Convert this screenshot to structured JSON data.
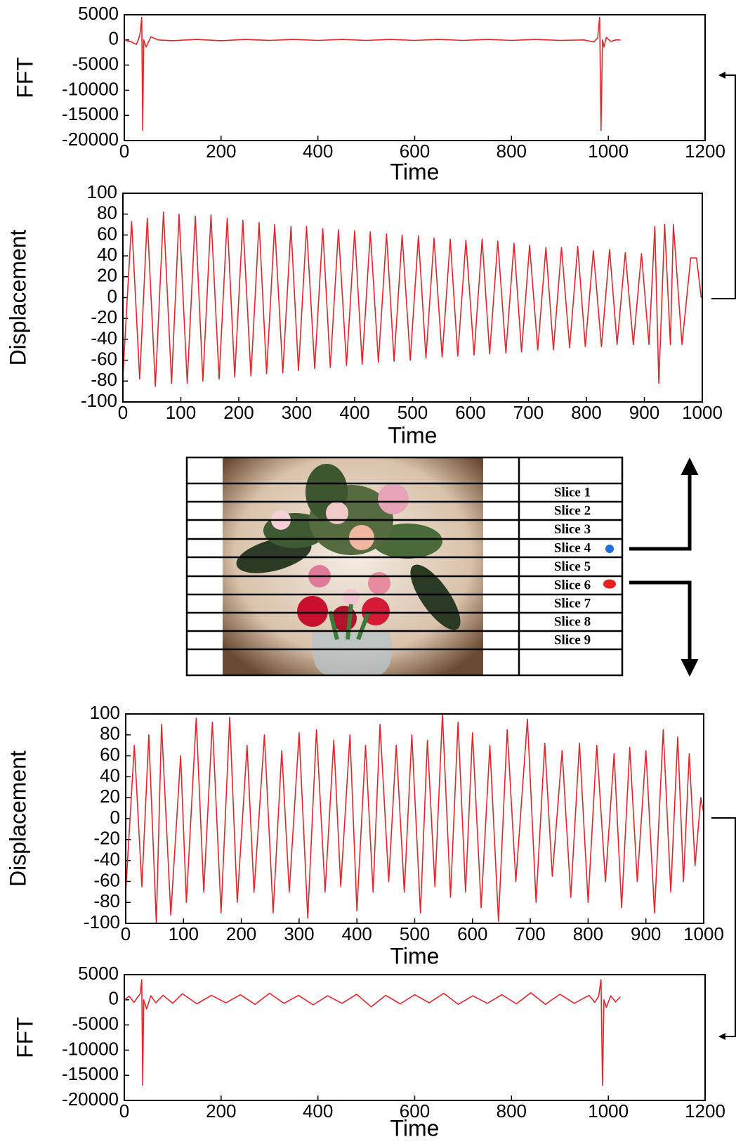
{
  "chart_data": [
    {
      "type": "line",
      "xlabel": "Time",
      "ylabel": "FFT",
      "color": "#e8232a",
      "x": [
        0,
        15,
        25,
        30,
        33,
        36,
        38,
        40,
        45,
        55,
        70,
        100,
        150,
        200,
        250,
        300,
        350,
        400,
        450,
        500,
        550,
        600,
        650,
        700,
        750,
        800,
        850,
        900,
        950,
        970,
        978,
        982,
        985,
        988,
        991,
        996,
        1005,
        1015,
        1025
      ],
      "values": [
        0,
        -400,
        -900,
        300,
        1500,
        4500,
        -18000,
        0,
        -1400,
        600,
        0,
        -150,
        100,
        -150,
        100,
        -100,
        100,
        -100,
        100,
        -100,
        100,
        -100,
        100,
        -100,
        100,
        -100,
        100,
        -100,
        0,
        -400,
        400,
        4500,
        -18000,
        0,
        -1400,
        500,
        -300,
        0,
        0
      ],
      "xlim": [
        0,
        1200
      ],
      "xticks": [
        0,
        200,
        400,
        600,
        800,
        1000,
        1200
      ],
      "ylim": [
        -20000,
        5000
      ],
      "yticks": [
        -20000,
        -15000,
        -10000,
        -5000,
        0,
        5000
      ]
    },
    {
      "type": "line",
      "xlabel": "Time",
      "ylabel": "Displacement",
      "color": "#e8232a",
      "x": [
        0,
        15,
        29,
        42,
        56,
        70,
        84,
        97,
        111,
        125,
        138,
        152,
        166,
        180,
        193,
        207,
        221,
        235,
        248,
        262,
        276,
        290,
        303,
        317,
        331,
        345,
        358,
        372,
        386,
        400,
        413,
        427,
        441,
        455,
        468,
        482,
        496,
        510,
        523,
        537,
        551,
        565,
        578,
        592,
        606,
        620,
        633,
        647,
        661,
        675,
        688,
        702,
        716,
        730,
        743,
        757,
        771,
        785,
        798,
        812,
        826,
        840,
        853,
        867,
        881,
        895,
        908,
        918,
        925,
        935,
        945,
        950,
        965,
        980,
        990,
        998
      ],
      "values": [
        -75,
        73,
        -78,
        76,
        -85,
        82,
        -82,
        80,
        -82,
        78,
        -80,
        79,
        -78,
        76,
        -76,
        74,
        -75,
        72,
        -73,
        70,
        -72,
        68,
        -70,
        68,
        -68,
        66,
        -67,
        65,
        -65,
        64,
        -64,
        63,
        -62,
        61,
        -61,
        60,
        -60,
        59,
        -58,
        57,
        -57,
        56,
        -56,
        55,
        -55,
        56,
        -54,
        54,
        -53,
        52,
        -52,
        50,
        -50,
        48,
        -50,
        48,
        -48,
        49,
        -47,
        45,
        -47,
        46,
        -45,
        43,
        -45,
        42,
        -45,
        68,
        -82,
        70,
        -45,
        70,
        -45,
        38,
        38,
        0
      ],
      "xlim": [
        0,
        1000
      ],
      "xticks": [
        0,
        100,
        200,
        300,
        400,
        500,
        600,
        700,
        800,
        900,
        1000
      ],
      "ylim": [
        -100,
        100
      ],
      "yticks": [
        -100,
        -80,
        -60,
        -40,
        -20,
        0,
        20,
        40,
        60,
        80,
        100
      ]
    },
    {
      "type": "line",
      "xlabel": "Time",
      "ylabel": "Displacement",
      "color": "#e8232a",
      "x": [
        0,
        15,
        28,
        40,
        53,
        62,
        78,
        95,
        105,
        122,
        135,
        150,
        165,
        180,
        193,
        210,
        222,
        240,
        255,
        270,
        283,
        300,
        315,
        330,
        345,
        360,
        372,
        388,
        400,
        415,
        428,
        440,
        455,
        468,
        482,
        495,
        510,
        522,
        535,
        548,
        562,
        575,
        588,
        600,
        615,
        630,
        645,
        660,
        675,
        695,
        710,
        725,
        738,
        755,
        770,
        785,
        800,
        815,
        830,
        845,
        858,
        872,
        885,
        900,
        915,
        930,
        943,
        955,
        965,
        975,
        985,
        995,
        1000
      ],
      "values": [
        -70,
        70,
        -65,
        80,
        -100,
        90,
        -92,
        60,
        -80,
        96,
        -70,
        92,
        -90,
        97,
        -80,
        70,
        -70,
        80,
        -90,
        65,
        -70,
        82,
        -95,
        85,
        -70,
        75,
        -65,
        80,
        -88,
        70,
        -70,
        90,
        -60,
        70,
        -70,
        80,
        -90,
        75,
        -65,
        100,
        -75,
        92,
        -70,
        82,
        -85,
        70,
        -98,
        85,
        -60,
        95,
        -80,
        72,
        -55,
        65,
        -75,
        72,
        -80,
        70,
        -60,
        62,
        -85,
        68,
        -60,
        65,
        -90,
        85,
        -70,
        78,
        -60,
        62,
        -45,
        20,
        5
      ],
      "xlim": [
        0,
        1000
      ],
      "xticks": [
        0,
        100,
        200,
        300,
        400,
        500,
        600,
        700,
        800,
        900,
        1000
      ],
      "ylim": [
        -100,
        100
      ],
      "yticks": [
        -100,
        -80,
        -60,
        -40,
        -20,
        0,
        20,
        40,
        60,
        80,
        100
      ]
    },
    {
      "type": "line",
      "xlabel": "Time",
      "ylabel": "FFT",
      "color": "#e8232a",
      "x": [
        0,
        10,
        20,
        28,
        33,
        36,
        38,
        40,
        46,
        55,
        65,
        80,
        100,
        120,
        150,
        180,
        210,
        240,
        270,
        300,
        330,
        360,
        390,
        420,
        450,
        480,
        510,
        540,
        570,
        600,
        630,
        660,
        690,
        720,
        750,
        780,
        810,
        840,
        870,
        900,
        930,
        960,
        972,
        980,
        985,
        988,
        991,
        996,
        1005,
        1015,
        1025
      ],
      "values": [
        0,
        700,
        -500,
        600,
        1200,
        4000,
        -17000,
        0,
        -1800,
        800,
        -600,
        900,
        -700,
        1200,
        -800,
        900,
        -600,
        1000,
        -900,
        1300,
        -700,
        900,
        -1000,
        800,
        -700,
        1100,
        -1400,
        900,
        -800,
        1000,
        -600,
        1300,
        -900,
        800,
        -700,
        1000,
        -800,
        1400,
        -900,
        1100,
        -700,
        900,
        -500,
        700,
        4000,
        -17000,
        0,
        -1500,
        800,
        -400,
        600
      ],
      "xlim": [
        0,
        1200
      ],
      "xticks": [
        0,
        200,
        400,
        600,
        800,
        1000,
        1200
      ],
      "ylim": [
        -20000,
        5000
      ],
      "yticks": [
        -20000,
        -15000,
        -10000,
        -5000,
        0,
        5000
      ]
    }
  ],
  "slices": [
    "Slice 1",
    "Slice 2",
    "Slice 3",
    "Slice 4",
    "Slice 5",
    "Slice 6",
    "Slice 7",
    "Slice 8",
    "Slice 9"
  ]
}
